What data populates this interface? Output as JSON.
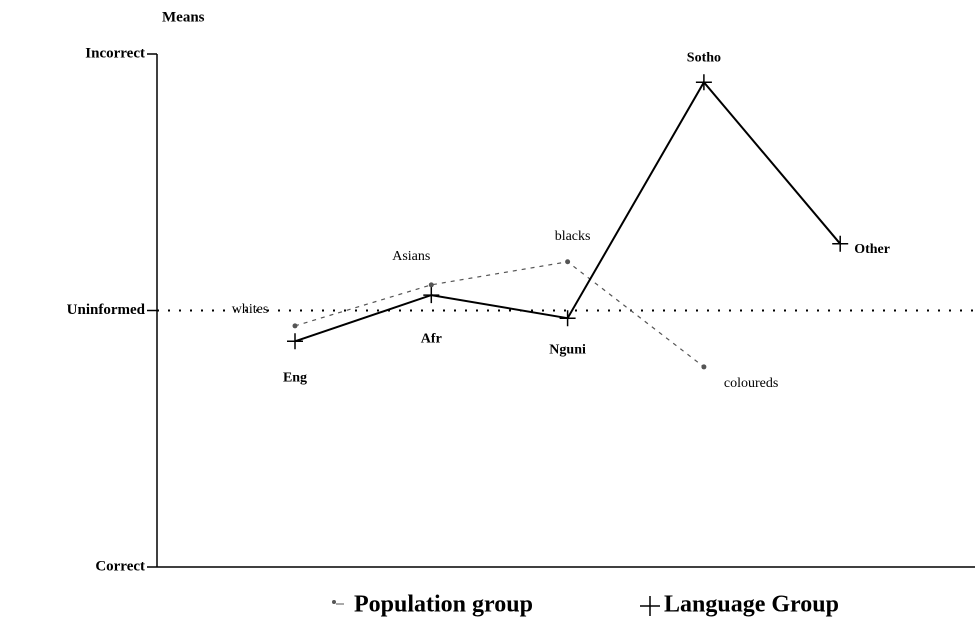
{
  "chart_data": {
    "type": "line",
    "y_label": "Means",
    "categories": [
      null,
      null,
      null,
      null,
      null
    ],
    "ylim": [
      0,
      2
    ],
    "yticks": [
      {
        "value": 0,
        "label": "Correct"
      },
      {
        "value": 1,
        "label": "Uninformed"
      },
      {
        "value": 2,
        "label": "Incorrect"
      }
    ],
    "reference_line": 1,
    "series": [
      {
        "name": "Population group",
        "color": "#555555",
        "dash": true,
        "values": [
          0.94,
          1.1,
          1.19,
          0.78,
          null
        ],
        "point_labels": [
          "whites",
          "Asians",
          "blacks",
          "coloureds",
          null
        ]
      },
      {
        "name": "Language Group",
        "color": "#000000",
        "dash": false,
        "values": [
          0.88,
          1.06,
          0.97,
          1.89,
          1.26
        ],
        "point_labels": [
          "Eng",
          "Afr",
          "Nguni",
          "Sotho",
          "Other"
        ]
      }
    ]
  }
}
